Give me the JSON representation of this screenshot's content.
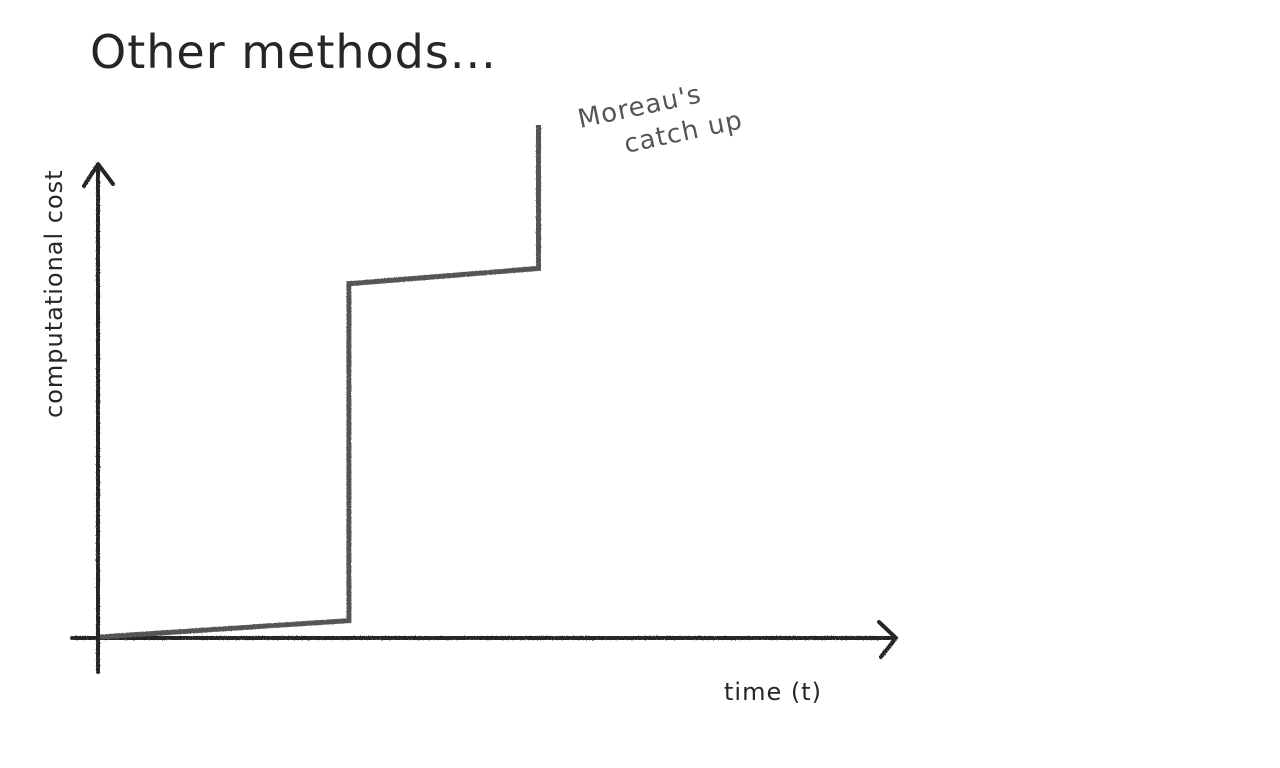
{
  "title": "Other methods...",
  "chart_data": {
    "type": "line",
    "title": "Other methods...",
    "xlabel": "time (t)",
    "ylabel": "computational cost",
    "series": [
      {
        "x": [
          0,
          0.315,
          0.315,
          0.555,
          0.555
        ],
        "y": [
          0,
          0.032,
          0.69,
          0.72,
          1.0
        ]
      }
    ],
    "annotations": [
      {
        "text_lines": [
          "Moreau's",
          "catch up"
        ]
      }
    ],
    "xlim": [
      0,
      1
    ],
    "ylim": [
      0,
      1
    ],
    "grid": false,
    "line_color": "#555555",
    "axis_color": "#262626"
  }
}
